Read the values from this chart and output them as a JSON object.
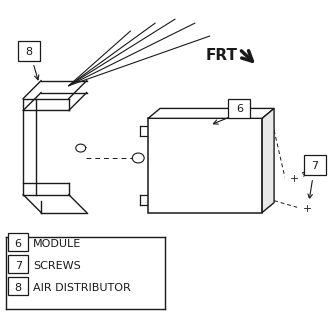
{
  "background_color": "#ffffff",
  "line_color": "#1a1a1a",
  "legend_items": [
    {
      "num": "6",
      "label": "MODULE"
    },
    {
      "num": "7",
      "label": "SCREWS"
    },
    {
      "num": "8",
      "label": "AIR DISTRIBUTOR"
    }
  ],
  "figsize": [
    3.32,
    3.14
  ],
  "dpi": 100
}
